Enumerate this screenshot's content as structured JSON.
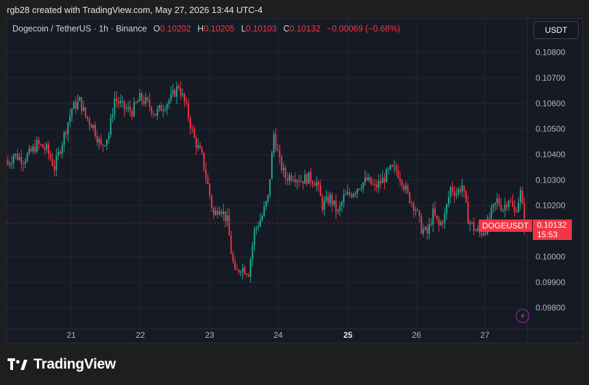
{
  "header": {
    "attribution": "rgb28 created with TradingView.com, May 27, 2026 13:44 UTC-4"
  },
  "legend": {
    "symbol": "Dogecoin / TetherUS · 1h · Binance",
    "o_label": "O",
    "o": "0.10202",
    "h_label": "H",
    "h": "0.10205",
    "l_label": "L",
    "l": "0.10103",
    "c_label": "C",
    "c": "0.10132",
    "change": "−0.00069 (−0.68%)"
  },
  "currency_button": "USDT",
  "last_price": {
    "symbol": "DOGEUSDT",
    "price": "0.10132",
    "countdown": "15:53"
  },
  "brand": {
    "name": "TradingView",
    "icon": "tradingview-logo-icon"
  },
  "colors": {
    "up": "#22ab94",
    "down": "#f23645",
    "bg": "#161a25",
    "grid": "#232733",
    "axis_text": "#b2b5be"
  },
  "chart_data": {
    "type": "candlestick",
    "x_ticks": [
      "21",
      "22",
      "23",
      "24",
      "25",
      "26",
      "27"
    ],
    "x_tick_bold": "25",
    "y_ticks": [
      "0.10800",
      "0.10700",
      "0.10600",
      "0.10500",
      "0.10400",
      "0.10300",
      "0.10200",
      "0.10000",
      "0.09900",
      "0.09800"
    ],
    "ylim": [
      0.0972,
      0.1093
    ],
    "last_close": 0.10132,
    "anchors": [
      [
        0,
        0.1036
      ],
      [
        3,
        0.104
      ],
      [
        8,
        0.1038
      ],
      [
        12,
        0.1041
      ],
      [
        15,
        0.1044
      ],
      [
        20,
        0.1042
      ],
      [
        24,
        0.1035
      ],
      [
        28,
        0.1045
      ],
      [
        33,
        0.1058
      ],
      [
        37,
        0.1061
      ],
      [
        40,
        0.1055
      ],
      [
        44,
        0.1051
      ],
      [
        48,
        0.1043
      ],
      [
        52,
        0.1048
      ],
      [
        55,
        0.1062
      ],
      [
        60,
        0.1058
      ],
      [
        64,
        0.1057
      ],
      [
        68,
        0.1062
      ],
      [
        72,
        0.106
      ],
      [
        76,
        0.1056
      ],
      [
        80,
        0.1059
      ],
      [
        84,
        0.1062
      ],
      [
        88,
        0.1067
      ],
      [
        92,
        0.1058
      ],
      [
        96,
        0.1046
      ],
      [
        100,
        0.1039
      ],
      [
        103,
        0.1028
      ],
      [
        106,
        0.1016
      ],
      [
        109,
        0.102
      ],
      [
        113,
        0.1014
      ],
      [
        115,
        0.1002
      ],
      [
        117,
        0.0993
      ],
      [
        120,
        0.0996
      ],
      [
        124,
        0.0994
      ],
      [
        127,
        0.101
      ],
      [
        131,
        0.1016
      ],
      [
        134,
        0.1023
      ],
      [
        137,
        0.1048
      ],
      [
        140,
        0.1037
      ],
      [
        143,
        0.1031
      ],
      [
        147,
        0.1032
      ],
      [
        151,
        0.103
      ],
      [
        155,
        0.1031
      ],
      [
        159,
        0.1029
      ],
      [
        162,
        0.102
      ],
      [
        166,
        0.1023
      ],
      [
        170,
        0.1017
      ],
      [
        173,
        0.1023
      ],
      [
        177,
        0.1025
      ],
      [
        181,
        0.1028
      ],
      [
        185,
        0.103
      ],
      [
        189,
        0.1027
      ],
      [
        193,
        0.103
      ],
      [
        197,
        0.1034
      ],
      [
        200,
        0.1034
      ],
      [
        203,
        0.103
      ],
      [
        206,
        0.1024
      ],
      [
        210,
        0.1019
      ],
      [
        213,
        0.1011
      ],
      [
        216,
        0.1009
      ],
      [
        219,
        0.1017
      ],
      [
        222,
        0.1012
      ],
      [
        225,
        0.1016
      ],
      [
        228,
        0.1027
      ],
      [
        231,
        0.1025
      ],
      [
        234,
        0.1028
      ],
      [
        237,
        0.1015
      ],
      [
        240,
        0.1011
      ],
      [
        243,
        0.1009
      ],
      [
        246,
        0.1011
      ],
      [
        249,
        0.1017
      ],
      [
        252,
        0.1022
      ],
      [
        255,
        0.1019
      ],
      [
        258,
        0.1023
      ],
      [
        261,
        0.1017
      ],
      [
        264,
        0.1025
      ],
      [
        266,
        0.1013
      ]
    ]
  }
}
